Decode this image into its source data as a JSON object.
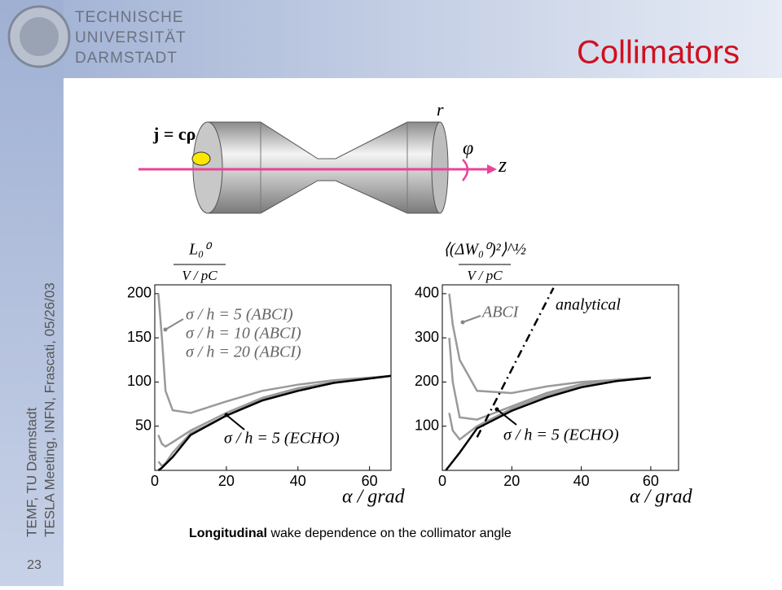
{
  "header": {
    "logo_lines": [
      "TECHNISCHE",
      "UNIVERSITÄT",
      "DARMSTADT"
    ],
    "title": "Collimators"
  },
  "sidebar": {
    "lines": [
      "TEMF, TU Darmstadt",
      "TESLA Meeting, INFN, Frascati, 05/26/03"
    ],
    "page": "23"
  },
  "diagram": {
    "labels": [
      "j = cρ",
      "r",
      "φ",
      "z"
    ]
  },
  "caption": {
    "bold": "Longitudinal",
    "rest": "wake dependence on the collimator angle"
  },
  "chart_data": [
    {
      "type": "line",
      "ylabel": [
        "L₀⁰",
        "V / pC"
      ],
      "xlabel": "α / grad",
      "xlim": [
        0,
        66
      ],
      "xticks": [
        0,
        20,
        40,
        60
      ],
      "ylim": [
        0,
        210
      ],
      "yticks": [
        50,
        100,
        150,
        200
      ],
      "series": [
        {
          "name": "σ / h = 5 (ABCI)",
          "color": "#9a9a9a",
          "x": [
            1,
            2,
            3,
            5,
            10,
            20,
            30,
            40,
            50,
            60,
            66
          ],
          "values": [
            200,
            150,
            90,
            68,
            65,
            78,
            90,
            97,
            102,
            105,
            107
          ]
        },
        {
          "name": "σ / h = 10 (ABCI)",
          "color": "#9a9a9a",
          "x": [
            1,
            2,
            3,
            5,
            10,
            20,
            30,
            40,
            50,
            60,
            66
          ],
          "values": [
            40,
            30,
            27,
            32,
            45,
            65,
            82,
            93,
            100,
            104,
            107
          ]
        },
        {
          "name": "σ / h = 20 (ABCI)",
          "color": "#9a9a9a",
          "x": [
            1,
            2,
            3,
            5,
            10,
            20,
            30,
            40,
            50,
            60,
            66
          ],
          "values": [
            10,
            5,
            8,
            20,
            42,
            62,
            80,
            92,
            100,
            104,
            107
          ]
        },
        {
          "name": "σ / h = 5 (ECHO)",
          "color": "#000000",
          "x": [
            1,
            2,
            3,
            5,
            10,
            20,
            30,
            40,
            50,
            60,
            66
          ],
          "values": [
            0,
            3,
            7,
            15,
            40,
            62,
            79,
            90,
            99,
            104,
            107
          ]
        }
      ]
    },
    {
      "type": "line",
      "ylabel": [
        "⟨(ΔW₀⁰)²⟩^½",
        "V / pC"
      ],
      "xlabel": "α / grad",
      "xlim": [
        0,
        68
      ],
      "xticks": [
        0,
        20,
        40,
        60
      ],
      "ylim": [
        0,
        420
      ],
      "yticks": [
        100,
        200,
        300,
        400
      ],
      "series": [
        {
          "name": "ABCI",
          "color": "#9a9a9a",
          "x": [
            2,
            3,
            5,
            10,
            20,
            30,
            40,
            50,
            60
          ],
          "values": [
            400,
            330,
            250,
            180,
            175,
            190,
            200,
            205,
            210
          ]
        },
        {
          "color": "#9a9a9a",
          "x": [
            2,
            3,
            5,
            10,
            20,
            30,
            40,
            50,
            60
          ],
          "values": [
            300,
            200,
            120,
            115,
            145,
            175,
            195,
            205,
            210
          ]
        },
        {
          "color": "#9a9a9a",
          "x": [
            2,
            3,
            5,
            10,
            20,
            30,
            40,
            50,
            60
          ],
          "values": [
            130,
            90,
            70,
            100,
            140,
            170,
            190,
            203,
            210
          ]
        },
        {
          "name": "σ / h = 5 (ECHO)",
          "color": "#000000",
          "x": [
            1,
            3,
            5,
            10,
            20,
            30,
            40,
            50,
            60
          ],
          "values": [
            0,
            20,
            40,
            95,
            135,
            165,
            188,
            202,
            210
          ]
        },
        {
          "name": "analytical",
          "color": "#000000",
          "dash": "dash-dot",
          "x": [
            10,
            32
          ],
          "values": [
            75,
            413
          ]
        }
      ]
    }
  ]
}
